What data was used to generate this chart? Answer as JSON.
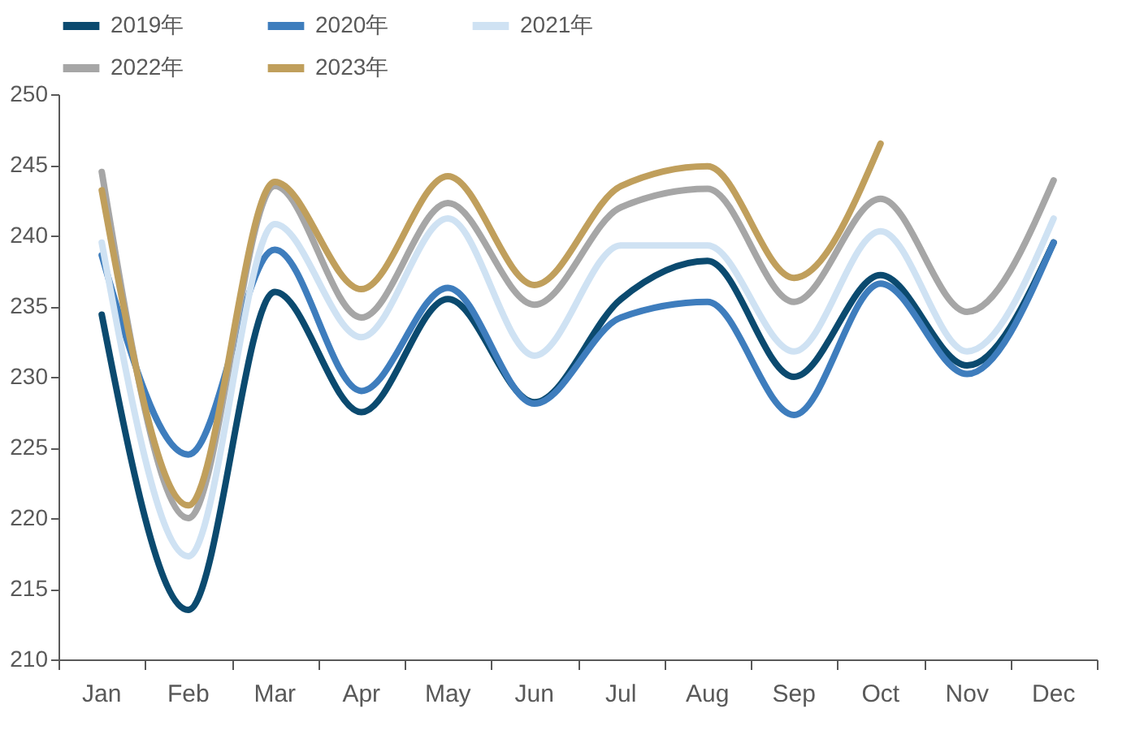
{
  "chart_data": {
    "type": "line",
    "categories": [
      "Jan",
      "Feb",
      "Mar",
      "Apr",
      "May",
      "Jun",
      "Jul",
      "Aug",
      "Sep",
      "Oct",
      "Nov",
      "Dec"
    ],
    "series": [
      {
        "name": "2019年",
        "color": "#0b4a6f",
        "values": [
          234.4,
          213.5,
          236.0,
          227.5,
          235.5,
          228.2,
          235.5,
          238.2,
          230.0,
          237.2,
          230.8,
          239.5
        ]
      },
      {
        "name": "2020年",
        "color": "#3e7dbd",
        "values": [
          238.6,
          224.5,
          239.0,
          229.0,
          236.3,
          228.1,
          234.2,
          235.3,
          227.3,
          236.6,
          230.2,
          239.5
        ]
      },
      {
        "name": "2021年",
        "color": "#cfe2f3",
        "values": [
          239.5,
          217.3,
          240.8,
          232.8,
          241.2,
          231.5,
          239.3,
          239.3,
          231.8,
          240.3,
          231.8,
          241.2
        ]
      },
      {
        "name": "2022年",
        "color": "#a6a6a6",
        "values": [
          244.5,
          220.0,
          243.5,
          234.2,
          242.3,
          235.1,
          242.0,
          243.3,
          235.3,
          242.6,
          234.6,
          243.9
        ]
      },
      {
        "name": "2023年",
        "color": "#c09f5c",
        "values": [
          243.2,
          220.9,
          243.8,
          236.2,
          244.2,
          236.5,
          243.5,
          244.9,
          237.0,
          246.5,
          null,
          null
        ]
      }
    ],
    "ylim": [
      210,
      250
    ],
    "yticks": [
      210,
      215,
      220,
      225,
      230,
      235,
      240,
      245,
      250
    ],
    "grid": false,
    "legend": "top",
    "marker": "none",
    "line_style": "solid"
  }
}
